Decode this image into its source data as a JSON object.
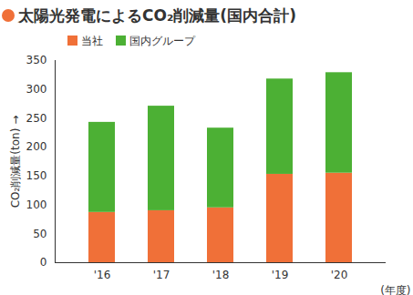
{
  "chart_data": {
    "type": "bar",
    "title": "太陽光発電によるCO₂削減量(国内合計)",
    "categories": [
      "'16",
      "'17",
      "'18",
      "'19",
      "'20"
    ],
    "series": [
      {
        "name": "当社",
        "color": "#f07038",
        "values": [
          87,
          90,
          95,
          153,
          155
        ]
      },
      {
        "name": "国内グループ",
        "color": "#4cb034",
        "values": [
          156,
          181,
          138,
          165,
          174
        ]
      }
    ],
    "stacked": true,
    "y_label": "CO₂削減量(ton)",
    "x_label": "(年度)",
    "ylim": [
      0,
      350
    ],
    "yticks": [
      0,
      50,
      100,
      150,
      200,
      250,
      300,
      350
    ],
    "grid": false,
    "legend": "top-left"
  }
}
